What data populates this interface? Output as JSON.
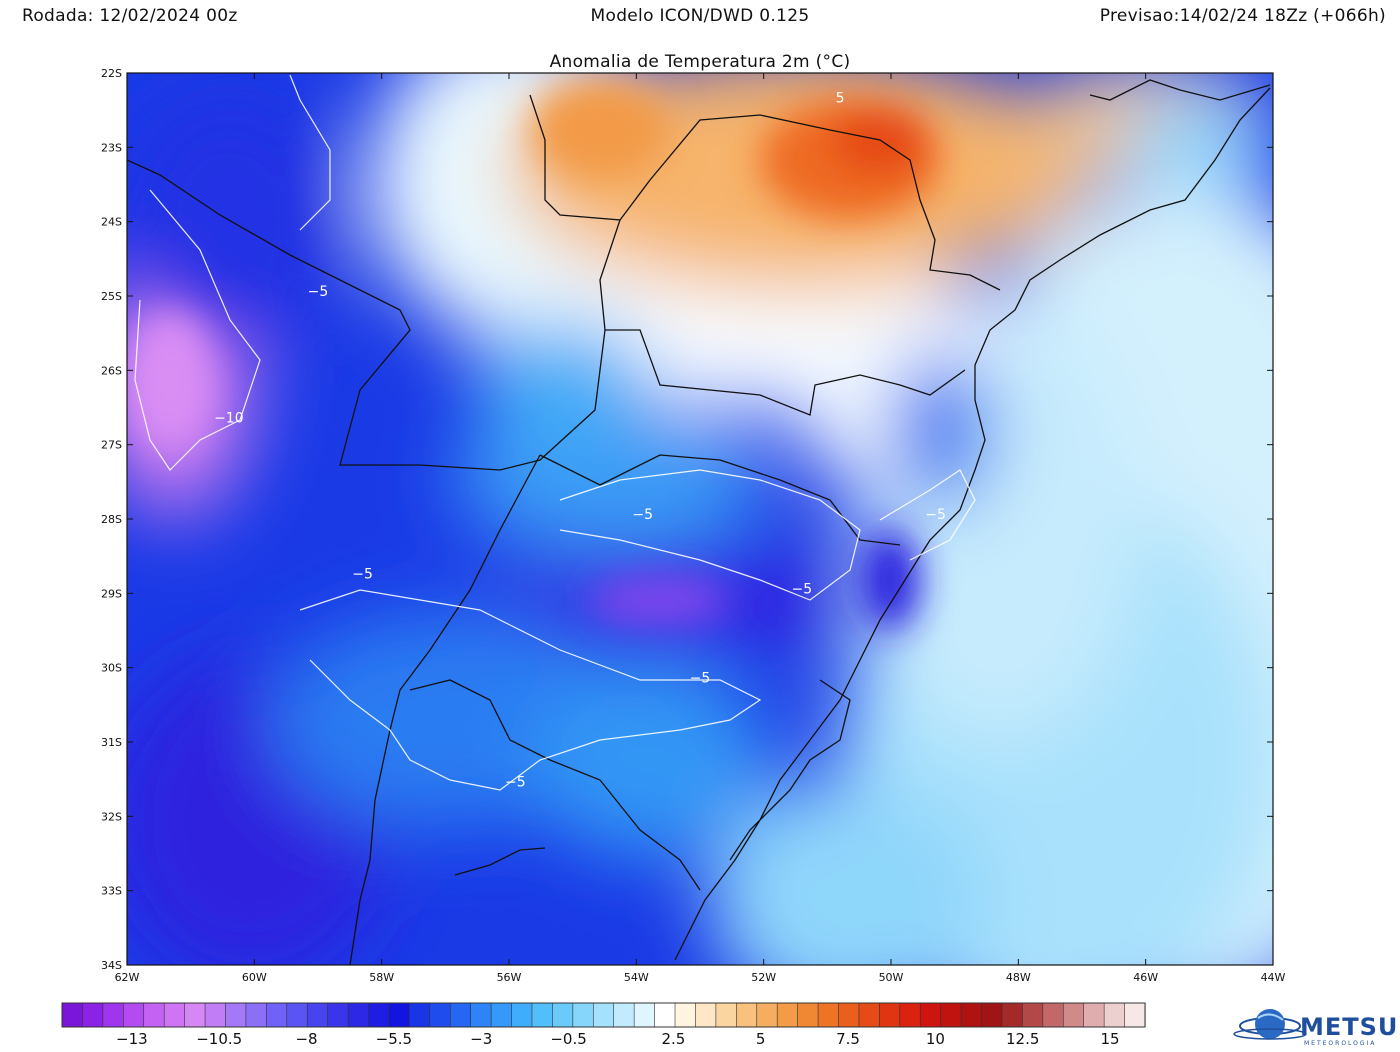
{
  "header": {
    "run": "Rodada: 12/02/2024 00z",
    "model": "Modelo ICON/DWD 0.125",
    "forecast": "Previsao:14/02/24 18Zz (+066h)",
    "title": "Anomalia de Temperatura 2m (°C)"
  },
  "map": {
    "lat_labels": [
      "22S",
      "23S",
      "24S",
      "25S",
      "26S",
      "27S",
      "28S",
      "29S",
      "30S",
      "31S",
      "32S",
      "33S",
      "34S"
    ],
    "lon_labels": [
      "62W",
      "60W",
      "58W",
      "56W",
      "54W",
      "52W",
      "50W",
      "48W",
      "46W",
      "44W"
    ],
    "contour_labels": [
      {
        "text": "5",
        "lon": -50.8,
        "lat": -22.4
      },
      {
        "text": "−5",
        "lon": -59.0,
        "lat": -25.0
      },
      {
        "text": "−10",
        "lon": -60.4,
        "lat": -26.7
      },
      {
        "text": "−5",
        "lon": -53.9,
        "lat": -28.0
      },
      {
        "text": "−5",
        "lon": -49.3,
        "lat": -28.0
      },
      {
        "text": "−5",
        "lon": -58.3,
        "lat": -28.8
      },
      {
        "text": "−5",
        "lon": -51.4,
        "lat": -29.0
      },
      {
        "text": "−5",
        "lon": -53.0,
        "lat": -30.2
      },
      {
        "text": "−5",
        "lon": -55.9,
        "lat": -31.6
      }
    ]
  },
  "colorbar": {
    "colors": [
      "#7a16d9",
      "#8c22e6",
      "#9f35ec",
      "#b24cf1",
      "#c463f3",
      "#cf74f4",
      "#d588f5",
      "#c07df6",
      "#a479f7",
      "#8a6ff7",
      "#7062f6",
      "#5a54f4",
      "#4743ef",
      "#3a35ea",
      "#2d28e6",
      "#1f1de3",
      "#1414e0",
      "#1a35e6",
      "#1f4ded",
      "#2566f3",
      "#2d84f7",
      "#3599f9",
      "#3fadfb",
      "#52bffb",
      "#6acbfb",
      "#86d6fc",
      "#a3e1fd",
      "#c2ecfe",
      "#dff6fe",
      "#ffffff",
      "#fff5e0",
      "#fde7c6",
      "#fbd5a0",
      "#f8c17d",
      "#f5ad5f",
      "#f39b46",
      "#f08833",
      "#ee7425",
      "#ea5f1c",
      "#e64a16",
      "#e03513",
      "#d92210",
      "#ce140e",
      "#c0120f",
      "#b01212",
      "#9f1414",
      "#a42a2a",
      "#b34848",
      "#c26868",
      "#d18a8a",
      "#dfadad",
      "#ecd0cf",
      "#f6e8e6"
    ],
    "labels": [
      {
        "text": "−13",
        "value": -13
      },
      {
        "text": "−10.5",
        "value": -10.5
      },
      {
        "text": "−8",
        "value": -8
      },
      {
        "text": "−5.5",
        "value": -5.5
      },
      {
        "text": "−3",
        "value": -3
      },
      {
        "text": "−0.5",
        "value": -0.5
      },
      {
        "text": "2.5",
        "value": 2.5
      },
      {
        "text": "5",
        "value": 5
      },
      {
        "text": "7.5",
        "value": 7.5
      },
      {
        "text": "10",
        "value": 10
      },
      {
        "text": "12.5",
        "value": 12.5
      },
      {
        "text": "15",
        "value": 15
      }
    ],
    "min": -15,
    "max": 16
  },
  "logo": {
    "name": "METSUL",
    "tagline": "METEOROLOGIA"
  }
}
